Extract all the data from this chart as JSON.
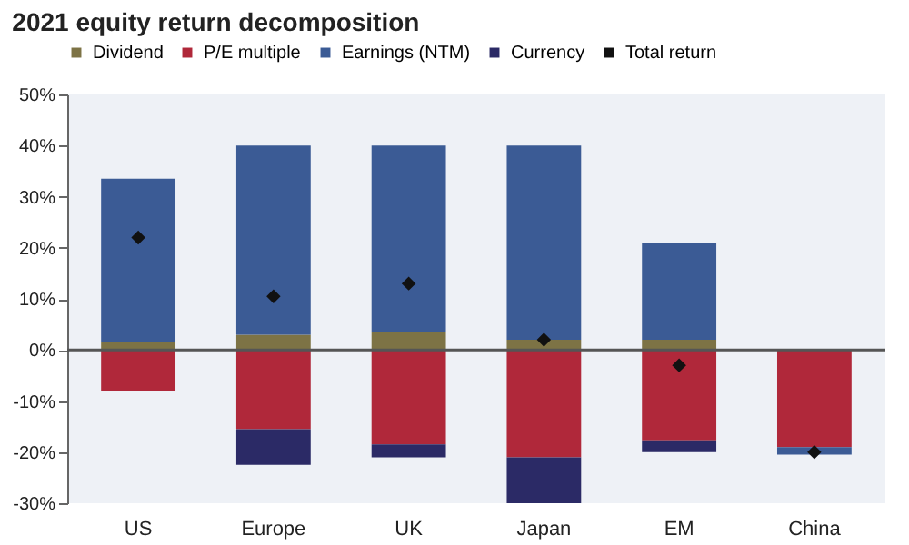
{
  "chart_data": {
    "type": "bar",
    "title": "2021 equity return decomposition",
    "stacked": true,
    "categories": [
      "US",
      "Europe",
      "UK",
      "Japan",
      "EM",
      "China"
    ],
    "series": [
      {
        "name": "Dividend",
        "color": "#7d7345",
        "values": [
          1.5,
          3,
          3.5,
          2,
          2,
          null
        ]
      },
      {
        "name": "P/E multiple",
        "color": "#b0283a",
        "values": [
          -8,
          -15.5,
          -18.5,
          -21,
          -17.7,
          -19
        ]
      },
      {
        "name": "Earnings (NTM)",
        "color": "#3b5b95",
        "values": [
          32,
          37,
          36.5,
          38,
          19,
          -1.5
        ]
      },
      {
        "name": "Currency",
        "color": "#2b2a66",
        "values": [
          null,
          -7,
          -2.5,
          -9,
          -2.3,
          null
        ]
      },
      {
        "name": "Total return",
        "type": "scatter",
        "marker": "diamond",
        "color": "#111111",
        "values": [
          22,
          10.5,
          13,
          2,
          -3,
          -20
        ]
      }
    ],
    "ylim": [
      -30,
      50
    ],
    "yticks": [
      {
        "value": -30,
        "label": "-30%"
      },
      {
        "value": -20,
        "label": "-20%"
      },
      {
        "value": -10,
        "label": "-10%"
      },
      {
        "value": 0,
        "label": "0%"
      },
      {
        "value": 10,
        "label": "10%"
      },
      {
        "value": 20,
        "label": "20%"
      },
      {
        "value": 30,
        "label": "30%"
      },
      {
        "value": 40,
        "label": "40%"
      },
      {
        "value": 50,
        "label": "50%"
      }
    ],
    "ref_lines": [
      {
        "axis": "y",
        "value": 0,
        "color": "#555555"
      }
    ],
    "legend": "top",
    "grid": false
  }
}
